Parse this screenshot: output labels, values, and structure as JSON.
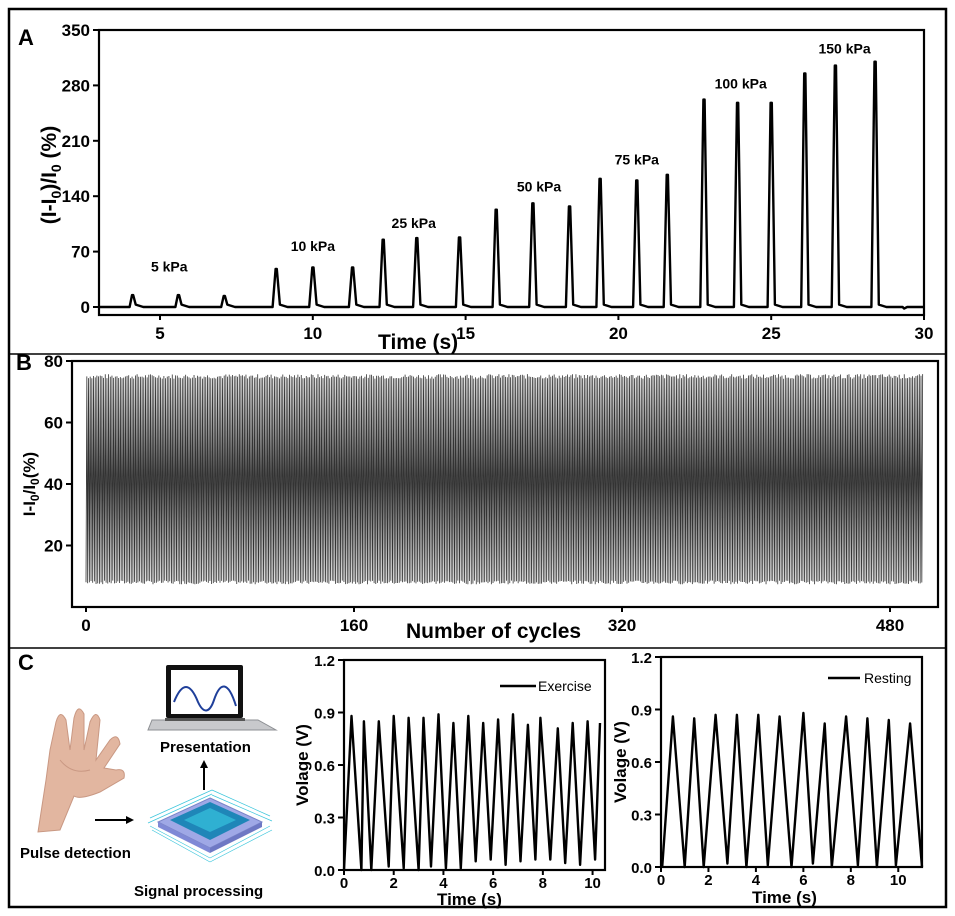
{
  "figure": {
    "panel_labels": [
      "A",
      "B",
      "C"
    ],
    "illustration": {
      "captions": {
        "pulse": "Pulse detection",
        "signal": "Signal processing",
        "presentation": "Presentation"
      },
      "icons": [
        "hand-icon",
        "laptop-icon",
        "chip-icon",
        "arrow-right-icon",
        "arrow-up-icon"
      ],
      "colors": {
        "wave": "#1f3f9a",
        "chip_top": "#2a9fc8",
        "chip_base": "#9fa8e6",
        "pins": "#3cc6dc",
        "skin": "#e2b6a0"
      }
    }
  },
  "chart_data": [
    {
      "id": "A",
      "type": "line",
      "title": "",
      "xlabel": "Time (s)",
      "ylabel": "(I-I0)/I0 (%)",
      "xlim": [
        3,
        30
      ],
      "ylim": [
        -5,
        350
      ],
      "xticks": [
        5,
        10,
        15,
        20,
        25,
        30
      ],
      "yticks": [
        0,
        70,
        140,
        210,
        280,
        350
      ],
      "grid": false,
      "annotations": [
        {
          "text": "5 kPa",
          "x": 5.3,
          "y": 45
        },
        {
          "text": "10 kPa",
          "x": 10.0,
          "y": 71
        },
        {
          "text": "25 kPa",
          "x": 13.3,
          "y": 100
        },
        {
          "text": "50 kPa",
          "x": 17.4,
          "y": 146
        },
        {
          "text": "75 kPa",
          "x": 20.6,
          "y": 180
        },
        {
          "text": "100 kPa",
          "x": 24.0,
          "y": 276
        },
        {
          "text": "150 kPa",
          "x": 27.4,
          "y": 320
        }
      ],
      "peaks": [
        {
          "pressure": "5 kPa",
          "t": 4.1,
          "value": 15
        },
        {
          "pressure": "5 kPa",
          "t": 5.6,
          "value": 15
        },
        {
          "pressure": "5 kPa",
          "t": 7.1,
          "value": 14
        },
        {
          "pressure": "10 kPa",
          "t": 8.8,
          "value": 48
        },
        {
          "pressure": "10 kPa",
          "t": 10.0,
          "value": 50
        },
        {
          "pressure": "10 kPa",
          "t": 11.3,
          "value": 50
        },
        {
          "pressure": "25 kPa",
          "t": 12.3,
          "value": 85
        },
        {
          "pressure": "25 kPa",
          "t": 13.4,
          "value": 87
        },
        {
          "pressure": "25 kPa",
          "t": 14.8,
          "value": 88
        },
        {
          "pressure": "50 kPa",
          "t": 16.0,
          "value": 123
        },
        {
          "pressure": "50 kPa",
          "t": 17.2,
          "value": 131
        },
        {
          "pressure": "50 kPa",
          "t": 18.4,
          "value": 127
        },
        {
          "pressure": "75 kPa",
          "t": 19.4,
          "value": 162
        },
        {
          "pressure": "75 kPa",
          "t": 20.6,
          "value": 160
        },
        {
          "pressure": "75 kPa",
          "t": 21.6,
          "value": 167
        },
        {
          "pressure": "100 kPa",
          "t": 22.8,
          "value": 262
        },
        {
          "pressure": "100 kPa",
          "t": 23.9,
          "value": 258
        },
        {
          "pressure": "100 kPa",
          "t": 25.0,
          "value": 258
        },
        {
          "pressure": "150 kPa",
          "t": 26.1,
          "value": 295
        },
        {
          "pressure": "150 kPa",
          "t": 27.1,
          "value": 305
        },
        {
          "pressure": "150 kPa",
          "t": 28.4,
          "value": 310
        }
      ],
      "baseline": 0
    },
    {
      "id": "B",
      "type": "line",
      "title": "",
      "xlabel": "Number of cycles",
      "ylabel": "I-I0/I0(%)",
      "xlim": [
        -2,
        505
      ],
      "ylim": [
        0,
        80
      ],
      "xticks": [
        0,
        160,
        320,
        480
      ],
      "yticks": [
        20,
        40,
        60,
        80
      ],
      "grid": false,
      "cycles": 500,
      "max_value": 75,
      "min_value": 8,
      "description": "Repeated loading/unloading cycles oscillating between ~8% and ~75%"
    },
    {
      "id": "C-exercise",
      "type": "line",
      "title": "",
      "xlabel": "Time (s)",
      "ylabel": "Volage (V)",
      "xlim": [
        0,
        10.5
      ],
      "ylim": [
        0,
        1.2
      ],
      "xticks": [
        0,
        2,
        4,
        6,
        8,
        10
      ],
      "yticks": [
        0.0,
        0.3,
        0.6,
        0.9,
        1.2
      ],
      "legend": {
        "label": "Exercise",
        "position": "top-right"
      },
      "series": [
        {
          "name": "Exercise",
          "peaks_t": [
            0.3,
            0.8,
            1.4,
            2.0,
            2.6,
            3.2,
            3.8,
            4.4,
            5.0,
            5.6,
            6.2,
            6.8,
            7.4,
            7.9,
            8.6,
            9.2,
            9.8,
            10.3
          ],
          "peaks_v": [
            0.88,
            0.85,
            0.85,
            0.88,
            0.87,
            0.87,
            0.89,
            0.84,
            0.88,
            0.84,
            0.86,
            0.89,
            0.83,
            0.87,
            0.81,
            0.84,
            0.85,
            0.84
          ],
          "troughs_t": [
            0.0,
            0.7,
            1.1,
            1.8,
            2.4,
            3.0,
            3.5,
            4.1,
            4.7,
            5.3,
            5.9,
            6.5,
            7.1,
            7.7,
            8.3,
            8.9,
            9.5,
            10.1
          ],
          "troughs_v": [
            0.0,
            0.0,
            0.0,
            0.02,
            0.01,
            0.0,
            0.02,
            0.01,
            0.01,
            0.05,
            0.06,
            0.03,
            0.05,
            0.06,
            0.06,
            0.04,
            0.03,
            0.06
          ]
        }
      ]
    },
    {
      "id": "C-resting",
      "type": "line",
      "title": "",
      "xlabel": "Time (s)",
      "ylabel": "Volage (V)",
      "xlim": [
        0,
        11
      ],
      "ylim": [
        0,
        1.2
      ],
      "xticks": [
        0,
        2,
        4,
        6,
        8,
        10
      ],
      "yticks": [
        0.0,
        0.3,
        0.6,
        0.9,
        1.2
      ],
      "legend": {
        "label": "Resting",
        "position": "top-right"
      },
      "series": [
        {
          "name": "Resting",
          "peaks_t": [
            0.5,
            1.4,
            2.3,
            3.2,
            4.1,
            5.0,
            6.0,
            6.9,
            7.8,
            8.7,
            9.6,
            10.5
          ],
          "peaks_v": [
            0.86,
            0.85,
            0.87,
            0.87,
            0.87,
            0.86,
            0.88,
            0.82,
            0.86,
            0.85,
            0.84,
            0.82
          ],
          "troughs_t": [
            0.05,
            1.0,
            1.8,
            2.8,
            3.6,
            4.5,
            5.5,
            6.4,
            7.2,
            8.3,
            9.1,
            9.9,
            11.0
          ],
          "troughs_v": [
            0.0,
            0.0,
            0.0,
            0.02,
            0.0,
            0.01,
            0.0,
            0.02,
            0.0,
            0.01,
            0.0,
            0.01,
            0.0
          ]
        }
      ]
    }
  ]
}
